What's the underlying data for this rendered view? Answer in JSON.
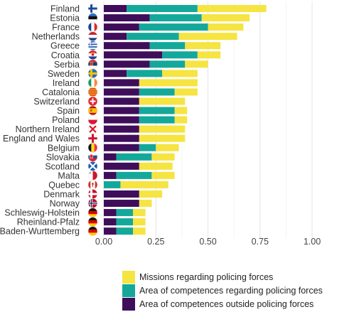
{
  "chart_data": {
    "type": "bar",
    "orientation": "horizontal",
    "stacked": true,
    "title": "",
    "xlabel": "",
    "ylabel": "",
    "xlim": [
      0,
      1
    ],
    "xticks": [
      "0.00",
      "0.25",
      "0.50",
      "0.75",
      "1.00"
    ],
    "grid": true,
    "legend_position": "bottom",
    "categories": [
      "Finland",
      "Estonia",
      "France",
      "Netherlands",
      "Greece",
      "Croatia",
      "Serbia",
      "Sweden",
      "Ireland",
      "Catalonia",
      "Switzerland",
      "Spain",
      "Poland",
      "Northern Ireland",
      "England and Wales",
      "Belgium",
      "Slovakia",
      "Scotland",
      "Malta",
      "Quebec",
      "Denmark",
      "Norway",
      "Schleswig-Holstein",
      "Rheinland-Pfalz",
      "Baden-Wurttemberg"
    ],
    "flags": [
      "finland-flag-icon",
      "estonia-flag-icon",
      "france-flag-icon",
      "netherlands-flag-icon",
      "greece-flag-icon",
      "croatia-flag-icon",
      "serbia-flag-icon",
      "sweden-flag-icon",
      "ireland-flag-icon",
      "catalonia-flag-icon",
      "switzerland-flag-icon",
      "spain-flag-icon",
      "poland-flag-icon",
      "northern-ireland-flag-icon",
      "england-flag-icon",
      "belgium-flag-icon",
      "slovakia-flag-icon",
      "scotland-flag-icon",
      "malta-flag-icon",
      "quebec-flag-icon",
      "denmark-flag-icon",
      "norway-flag-icon",
      "schleswig-holstein-flag-icon",
      "rheinland-pfalz-flag-icon",
      "baden-wurttemberg-flag-icon"
    ],
    "series": [
      {
        "name": "Area of competences outside policing forces",
        "color": "#3f0e5a",
        "values": [
          0.11,
          0.22,
          0.17,
          0.11,
          0.22,
          0.28,
          0.22,
          0.11,
          0.17,
          0.17,
          0.17,
          0.17,
          0.17,
          0.17,
          0.17,
          0.17,
          0.06,
          0.17,
          0.06,
          0.0,
          0.17,
          0.17,
          0.06,
          0.06,
          0.06
        ]
      },
      {
        "name": "Area of competences regarding policing forces",
        "color": "#14a89a",
        "values": [
          0.34,
          0.25,
          0.33,
          0.25,
          0.17,
          0.17,
          0.17,
          0.17,
          0.0,
          0.17,
          0.0,
          0.17,
          0.17,
          0.0,
          0.0,
          0.08,
          0.17,
          0.0,
          0.17,
          0.08,
          0.0,
          0.0,
          0.08,
          0.08,
          0.08
        ]
      },
      {
        "name": "Missions regarding policing forces",
        "color": "#f5e442",
        "values": [
          0.33,
          0.23,
          0.17,
          0.28,
          0.17,
          0.11,
          0.11,
          0.17,
          0.28,
          0.11,
          0.22,
          0.06,
          0.06,
          0.22,
          0.22,
          0.11,
          0.11,
          0.16,
          0.11,
          0.23,
          0.11,
          0.06,
          0.06,
          0.06,
          0.06
        ]
      }
    ],
    "legend_order": [
      "Missions regarding policing forces",
      "Area of competences regarding policing forces",
      "Area of competences outside policing forces"
    ]
  }
}
